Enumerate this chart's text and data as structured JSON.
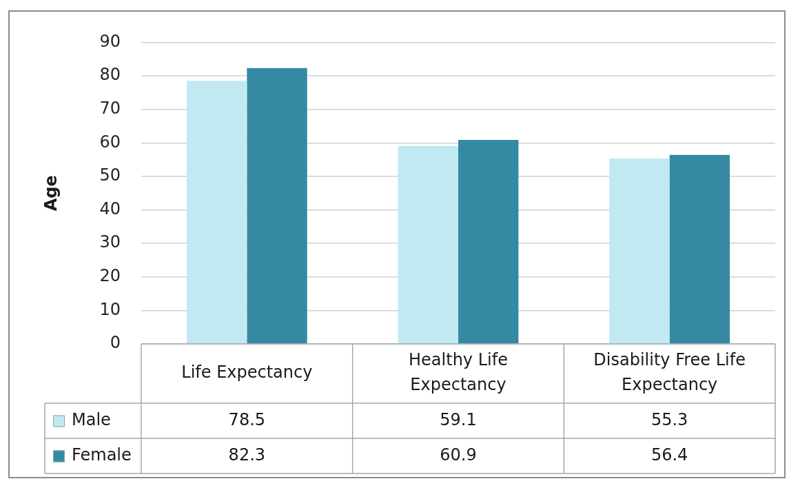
{
  "chart_data": {
    "type": "bar",
    "categories": [
      "Life Expectancy",
      "Healthy Life Expectancy",
      "Disability Free Life Expectancy"
    ],
    "series": [
      {
        "name": "Male",
        "color": "#c0e9f2",
        "values": [
          78.5,
          59.1,
          55.3
        ]
      },
      {
        "name": "Female",
        "color": "#3589a3",
        "values": [
          82.3,
          60.9,
          56.4
        ]
      }
    ],
    "ylabel": "Age",
    "ylim": [
      0,
      90
    ],
    "yticks": [
      0,
      10,
      20,
      30,
      40,
      50,
      60,
      70,
      80,
      90
    ],
    "grid": "y",
    "legend": "bottom left",
    "data_labels": true
  }
}
